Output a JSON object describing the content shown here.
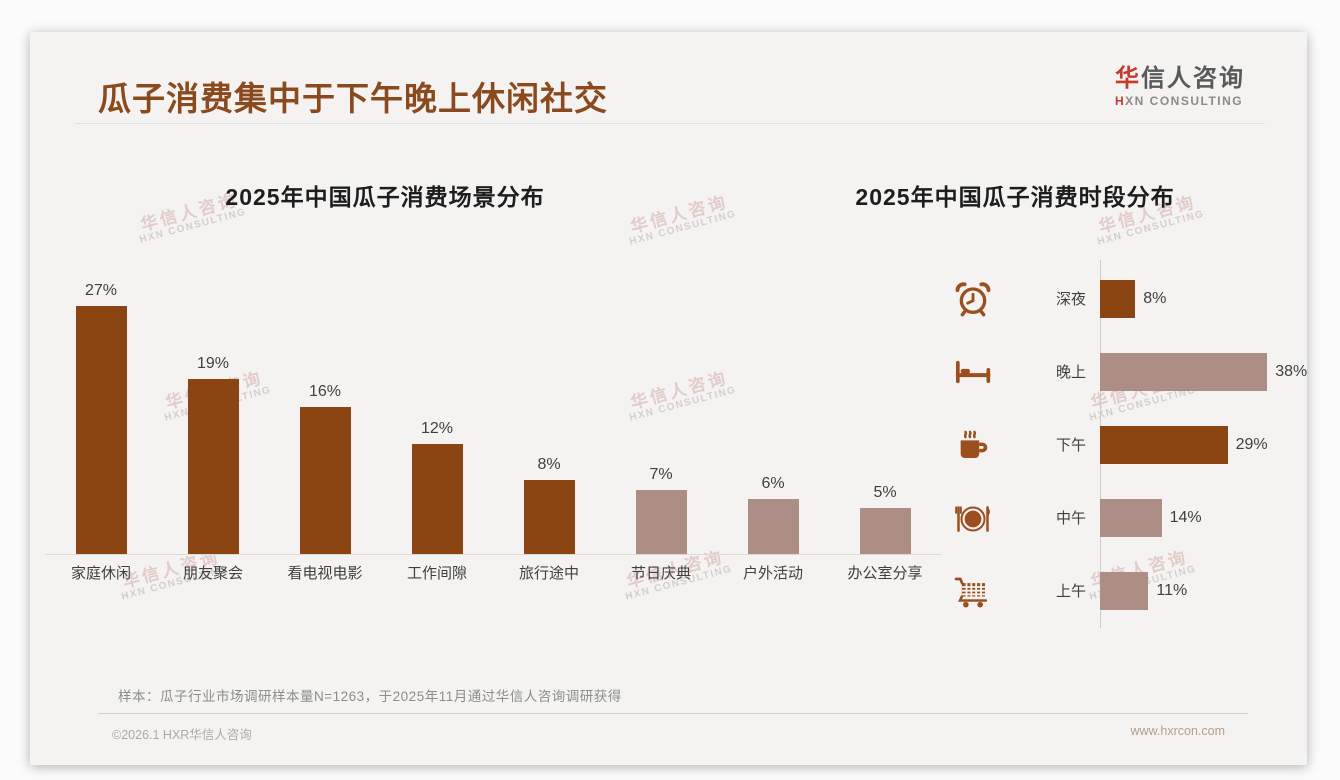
{
  "header": {
    "title": "瓜子消费集中于下午晚上休闲社交"
  },
  "logo": {
    "cn_accent": "华",
    "cn_rest": "信人咨询",
    "en_accent": "H",
    "en_rest": "XN CONSULTING"
  },
  "watermark": {
    "cn": "华信人咨询",
    "en": "HXN CONSULTING"
  },
  "chart_data": [
    {
      "type": "bar",
      "orientation": "vertical",
      "title": "2025年中国瓜子消费场景分布",
      "categories": [
        "家庭休闲",
        "朋友聚会",
        "看电视电影",
        "工作间隙",
        "旅行途中",
        "节日庆典",
        "户外活动",
        "办公室分享"
      ],
      "values": [
        27,
        19,
        16,
        12,
        8,
        7,
        6,
        5
      ],
      "value_labels": [
        "27%",
        "19%",
        "16%",
        "12%",
        "8%",
        "7%",
        "6%",
        "5%"
      ],
      "unit": "%",
      "bar_colors": [
        "#8B4513",
        "#8B4513",
        "#8B4513",
        "#8B4513",
        "#8B4513",
        "#AC8E86",
        "#AC8E86",
        "#AC8E86"
      ],
      "ylim": [
        0,
        30
      ],
      "grid": false,
      "legend": false
    },
    {
      "type": "bar",
      "orientation": "horizontal",
      "title": "2025年中国瓜子消费时段分布",
      "categories": [
        "深夜",
        "晚上",
        "下午",
        "中午",
        "上午"
      ],
      "values": [
        8,
        38,
        29,
        14,
        11
      ],
      "value_labels": [
        "8%",
        "38%",
        "29%",
        "14%",
        "11%"
      ],
      "unit": "%",
      "bar_colors": [
        "#8B4513",
        "#AC8E86",
        "#8B4513",
        "#AC8E86",
        "#AC8E86"
      ],
      "icons": [
        "alarm-clock-icon",
        "bed-icon",
        "coffee-icon",
        "dining-icon",
        "cart-icon"
      ],
      "xlim": [
        0,
        40
      ],
      "grid": false,
      "legend": false
    }
  ],
  "footer": {
    "note": "样本：瓜子行业市场调研样本量N=1263，于2025年11月通过华信人咨询调研获得",
    "copyright": "©2026.1 HXR华信人咨询",
    "website": "www.hxrcon.com"
  },
  "colors": {
    "bar_dark_brown": "#8B4513",
    "bar_light_mauve": "#AC8E86",
    "title_brown": "#8B4A1E",
    "logo_red": "#C43A2D",
    "slide_background": "#f4f3f1"
  }
}
